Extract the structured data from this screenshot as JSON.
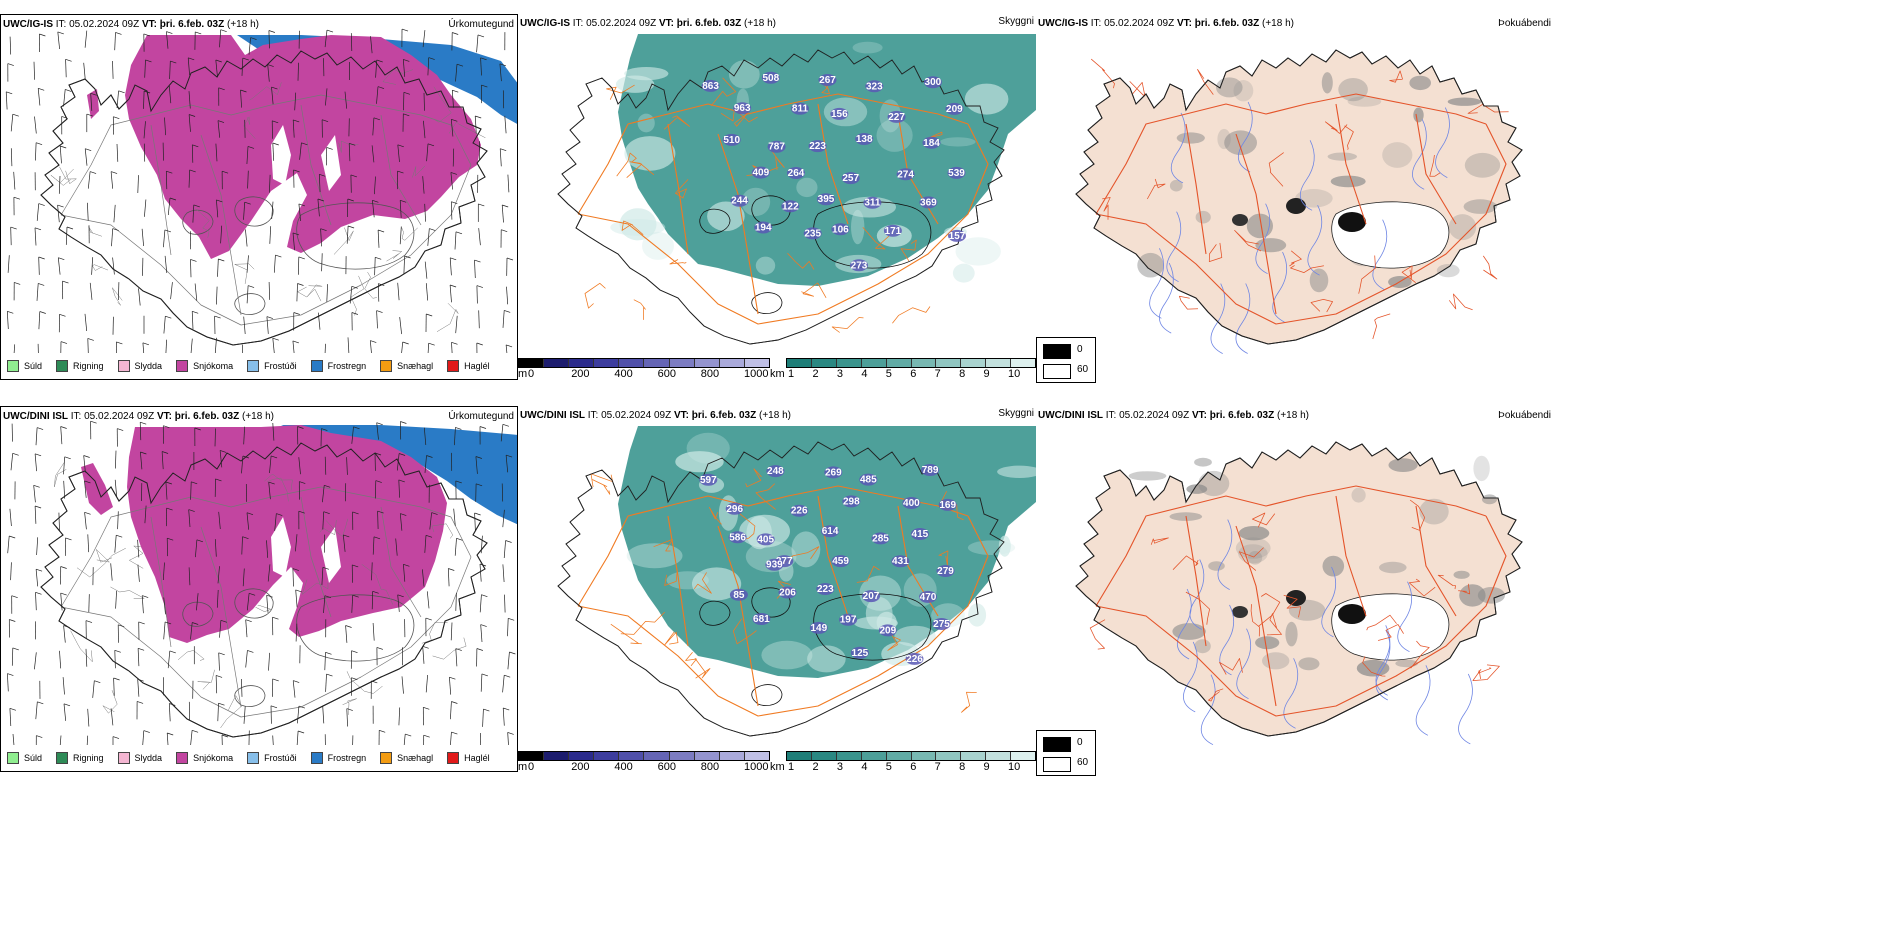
{
  "rows": [
    {
      "model": "UWC/IG-IS",
      "it_label": "IT:",
      "it_value": "05.02.2024 09Z",
      "vt_label": "VT:",
      "vt_value": "þri. 6.feb. 03Z",
      "lead": "(+18 h)",
      "precip_maxima": [
        "863",
        "508",
        "267",
        "323",
        "300",
        "963",
        "811",
        "156",
        "227",
        "209",
        "787",
        "223",
        "138",
        "184",
        "510",
        "264",
        "257",
        "274",
        "539",
        "409",
        "395",
        "311",
        "369",
        "244",
        "122",
        "106",
        "171",
        "157",
        "194",
        "235",
        "273"
      ]
    },
    {
      "model": "UWC/DINI ISL",
      "it_label": "IT:",
      "it_value": "05.02.2024 09Z",
      "vt_label": "VT:",
      "vt_value": "þri. 6.feb. 03Z",
      "lead": "(+18 h)",
      "precip_maxima": [
        "597",
        "248",
        "269",
        "485",
        "789",
        "296",
        "226",
        "298",
        "400",
        "169",
        "405",
        "614",
        "285",
        "415",
        "586",
        "277",
        "459",
        "431",
        "279",
        "939",
        "223",
        "207",
        "470",
        "85",
        "206",
        "197",
        "209",
        "275",
        "681",
        "149",
        "125",
        "226"
      ]
    }
  ],
  "panel_titles": {
    "precip_type": "Úrkomutegund",
    "visibility": "Skyggni",
    "fog": "Þokuábendi"
  },
  "precip_legend": [
    {
      "label": "Súld",
      "color": "#90ee90"
    },
    {
      "label": "Rigning",
      "color": "#2e8b57"
    },
    {
      "label": "Slydda",
      "color": "#f4b6d2"
    },
    {
      "label": "Snjókoma",
      "color": "#c245a0"
    },
    {
      "label": "Frostúði",
      "color": "#87bfea"
    },
    {
      "label": "Frostregn",
      "color": "#2a7bc6"
    },
    {
      "label": "Snæhagl",
      "color": "#f39c12"
    },
    {
      "label": "Haglél",
      "color": "#e11a1a"
    }
  ],
  "cloud_base_bar": {
    "unit": "m",
    "ticks": [
      "0",
      "200",
      "400",
      "600",
      "800",
      "1000"
    ],
    "colors": [
      "#000000",
      "#1c1c6e",
      "#2b2b8c",
      "#3d3d9e",
      "#5050aa",
      "#6565b5",
      "#7c7cc2",
      "#9494cf",
      "#aaaadb",
      "#c0c0e6"
    ]
  },
  "visibility_bar": {
    "unit": "km",
    "ticks": [
      "1",
      "2",
      "3",
      "4",
      "5",
      "6",
      "7",
      "8",
      "9",
      "10"
    ],
    "colors": [
      "#1e7e78",
      "#2a8882",
      "#3a948d",
      "#4d9f99",
      "#61aba5",
      "#78b8b2",
      "#90c6c1",
      "#a9d3cf",
      "#c3e1de",
      "#ddf0ee"
    ]
  },
  "fog_legend": [
    {
      "label": "0",
      "color": "#000000"
    },
    {
      "label": "60",
      "color": "#ffffff"
    }
  ],
  "colors": {
    "snow": "#c245a0",
    "freezing_rain": "#2a7bc6",
    "visibility_fill": "#2f8f88",
    "cloud_patch": "#5a58b5",
    "roads": "#f07a22",
    "fog_land": "#f4e0d2",
    "fog_road": "#e4542a",
    "fog_river": "#6f86e4"
  }
}
